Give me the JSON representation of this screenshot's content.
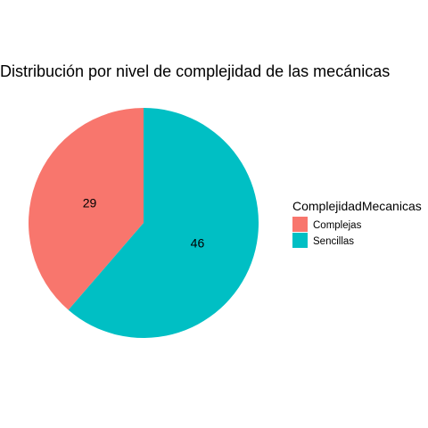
{
  "chart_data": {
    "type": "pie",
    "title": "Distribución por nivel de complejidad de las mecánicas",
    "legend_title": "ComplejidadMecanicas",
    "legend_position": "right",
    "categories": [
      "Complejas",
      "Sencillas"
    ],
    "values": [
      29,
      46
    ],
    "colors": [
      "#F8766D",
      "#00BFC4"
    ],
    "start_angle_deg": 0,
    "direction": "counterclockwise"
  }
}
